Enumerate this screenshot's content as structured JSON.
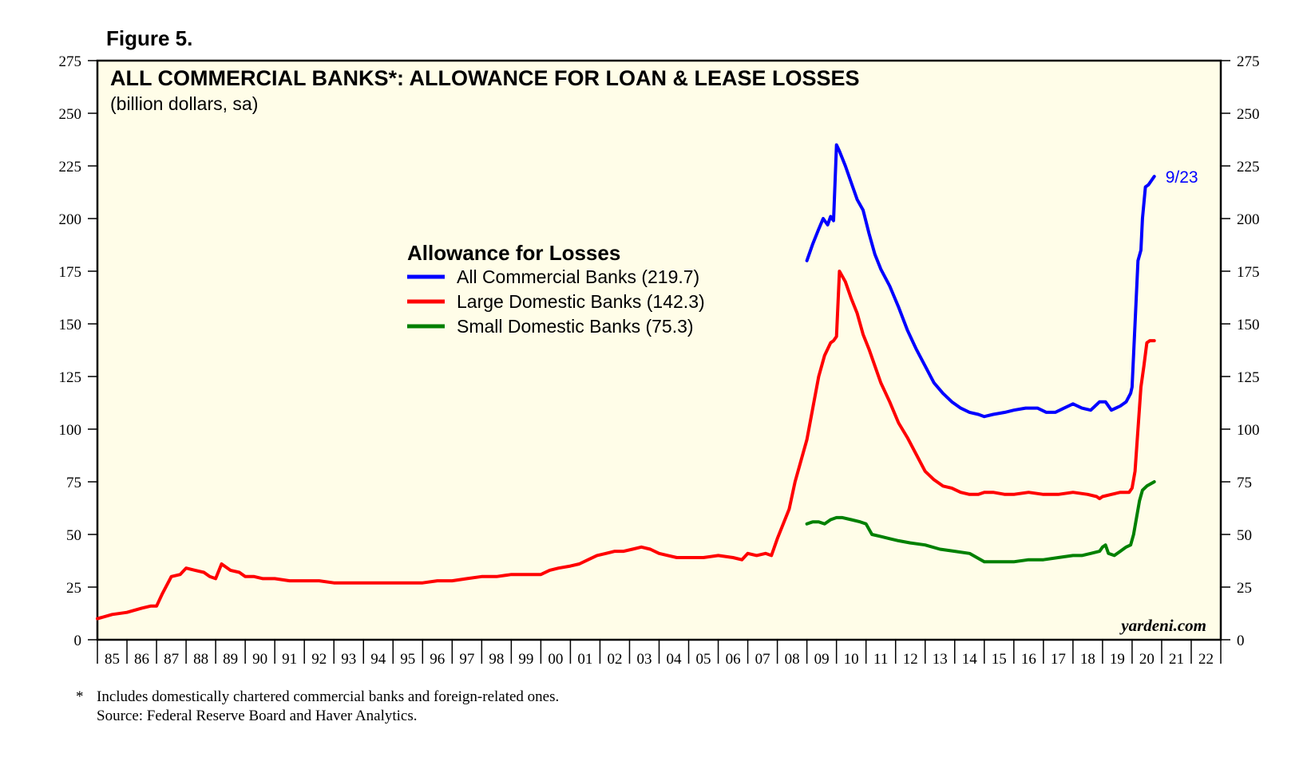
{
  "figure_label": "Figure 5.",
  "watermark": "yardeni.com",
  "footnote": {
    "marker": "*",
    "line1": "Includes domestically chartered commercial banks and foreign-related ones.",
    "line2": "Source: Federal Reserve Board and Haver Analytics."
  },
  "colors": {
    "plot_background": "#fffde8",
    "all_banks": "#0000ff",
    "large_banks": "#ff0000",
    "small_banks": "#008000"
  },
  "chart_data": {
    "type": "line",
    "title": "ALL COMMERCIAL BANKS*: ALLOWANCE FOR LOAN & LEASE LOSSES",
    "subtitle": "(billion dollars, sa)",
    "ylabel": "billion dollars, sa",
    "ylim": [
      0,
      275
    ],
    "xlim": [
      1985,
      2023
    ],
    "grid": false,
    "y_ticks": [
      "0",
      "25",
      "50",
      "75",
      "100",
      "125",
      "150",
      "175",
      "200",
      "225",
      "250",
      "275"
    ],
    "x_tick_labels": [
      "85",
      "86",
      "87",
      "88",
      "89",
      "90",
      "91",
      "92",
      "93",
      "94",
      "95",
      "96",
      "97",
      "98",
      "99",
      "00",
      "01",
      "02",
      "03",
      "04",
      "05",
      "06",
      "07",
      "08",
      "09",
      "10",
      "11",
      "12",
      "13",
      "14",
      "15",
      "16",
      "17",
      "18",
      "19",
      "20",
      "21",
      "22"
    ],
    "legend": {
      "title": "Allowance for Losses",
      "position": "upper-center",
      "entries": [
        {
          "label": "All Commercial Banks (219.7)",
          "series": "all"
        },
        {
          "label": "Large Domestic Banks (142.3)",
          "series": "large"
        },
        {
          "label": "Small Domestic Banks (75.3)",
          "series": "small"
        }
      ]
    },
    "annotations": [
      {
        "text": "9/23",
        "x": 2020.75,
        "y": 220,
        "series": "all"
      }
    ],
    "series": [
      {
        "name": "All Commercial Banks",
        "key": "all",
        "x": [
          2009.0,
          2009.2,
          2009.4,
          2009.55,
          2009.7,
          2009.8,
          2009.85,
          2009.9,
          2010.0,
          2010.1,
          2010.3,
          2010.5,
          2010.7,
          2010.9,
          2011.1,
          2011.3,
          2011.5,
          2011.8,
          2012.1,
          2012.4,
          2012.7,
          2013.0,
          2013.3,
          2013.6,
          2013.9,
          2014.2,
          2014.5,
          2014.8,
          2015.0,
          2015.3,
          2015.7,
          2016.0,
          2016.4,
          2016.8,
          2017.1,
          2017.4,
          2017.7,
          2018.0,
          2018.3,
          2018.6,
          2018.9,
          2019.1,
          2019.3,
          2019.6,
          2019.8,
          2019.95,
          2020.0,
          2020.1,
          2020.2,
          2020.3,
          2020.35,
          2020.45,
          2020.55,
          2020.65,
          2020.75
        ],
        "values": [
          180,
          188,
          195,
          200,
          197,
          201,
          200,
          199,
          235,
          232,
          225,
          217,
          209,
          204,
          193,
          183,
          176,
          168,
          158,
          147,
          138,
          130,
          122,
          117,
          113,
          110,
          108,
          107,
          106,
          107,
          108,
          109,
          110,
          110,
          108,
          108,
          110,
          112,
          110,
          109,
          113,
          113,
          109,
          111,
          113,
          117,
          120,
          150,
          180,
          185,
          200,
          215,
          216,
          218,
          220
        ]
      },
      {
        "name": "Large Domestic Banks",
        "key": "large",
        "x": [
          1985.0,
          1985.5,
          1986.0,
          1986.5,
          1986.8,
          1987.0,
          1987.2,
          1987.5,
          1987.8,
          1988.0,
          1988.3,
          1988.6,
          1988.8,
          1989.0,
          1989.2,
          1989.5,
          1989.8,
          1990.0,
          1990.3,
          1990.6,
          1991.0,
          1991.5,
          1992.0,
          1992.5,
          1993.0,
          1993.5,
          1994.0,
          1994.5,
          1995.0,
          1995.5,
          1996.0,
          1996.5,
          1996.9,
          1997.0,
          1997.5,
          1998.0,
          1998.5,
          1999.0,
          1999.5,
          2000.0,
          2000.3,
          2000.6,
          2001.0,
          2001.3,
          2001.6,
          2001.9,
          2002.2,
          2002.5,
          2002.8,
          2003.1,
          2003.4,
          2003.7,
          2004.0,
          2004.3,
          2004.6,
          2005.0,
          2005.5,
          2006.0,
          2006.5,
          2006.8,
          2007.0,
          2007.3,
          2007.6,
          2007.8,
          2008.0,
          2008.2,
          2008.4,
          2008.6,
          2008.8,
          2009.0,
          2009.2,
          2009.4,
          2009.6,
          2009.8,
          2009.9,
          2010.0,
          2010.1,
          2010.3,
          2010.5,
          2010.7,
          2010.9,
          2011.1,
          2011.3,
          2011.5,
          2011.8,
          2012.1,
          2012.4,
          2012.7,
          2013.0,
          2013.3,
          2013.6,
          2013.9,
          2014.2,
          2014.5,
          2014.8,
          2015.0,
          2015.3,
          2015.7,
          2016.0,
          2016.5,
          2017.0,
          2017.5,
          2018.0,
          2018.5,
          2018.8,
          2018.9,
          2019.0,
          2019.3,
          2019.6,
          2019.9,
          2020.0,
          2020.1,
          2020.2,
          2020.3,
          2020.4,
          2020.5,
          2020.6,
          2020.75
        ],
        "values": [
          10,
          12,
          13,
          15,
          16,
          16,
          22,
          30,
          31,
          34,
          33,
          32,
          30,
          29,
          36,
          33,
          32,
          30,
          30,
          29,
          29,
          28,
          28,
          28,
          27,
          27,
          27,
          27,
          27,
          27,
          27,
          28,
          28,
          28,
          29,
          30,
          30,
          31,
          31,
          31,
          33,
          34,
          35,
          36,
          38,
          40,
          41,
          42,
          42,
          43,
          44,
          43,
          41,
          40,
          39,
          39,
          39,
          40,
          39,
          38,
          41,
          40,
          41,
          40,
          48,
          55,
          62,
          75,
          85,
          95,
          110,
          125,
          135,
          141,
          142,
          144,
          175,
          170,
          162,
          155,
          145,
          138,
          130,
          122,
          113,
          103,
          96,
          88,
          80,
          76,
          73,
          72,
          70,
          69,
          69,
          70,
          70,
          69,
          69,
          70,
          69,
          69,
          70,
          69,
          68,
          67,
          68,
          69,
          70,
          70,
          72,
          80,
          100,
          120,
          130,
          141,
          142,
          142
        ]
      },
      {
        "name": "Small Domestic Banks",
        "key": "small",
        "x": [
          2009.0,
          2009.2,
          2009.4,
          2009.6,
          2009.8,
          2010.0,
          2010.2,
          2010.5,
          2010.8,
          2011.0,
          2011.2,
          2011.5,
          2011.8,
          2012.1,
          2012.5,
          2013.0,
          2013.5,
          2014.0,
          2014.5,
          2015.0,
          2015.5,
          2016.0,
          2016.5,
          2017.0,
          2017.5,
          2018.0,
          2018.3,
          2018.6,
          2018.9,
          2019.0,
          2019.1,
          2019.2,
          2019.4,
          2019.6,
          2019.8,
          2019.95,
          2020.05,
          2020.15,
          2020.25,
          2020.35,
          2020.5,
          2020.75
        ],
        "values": [
          55,
          56,
          56,
          55,
          57,
          58,
          58,
          57,
          56,
          55,
          50,
          49,
          48,
          47,
          46,
          45,
          43,
          42,
          41,
          37,
          37,
          37,
          38,
          38,
          39,
          40,
          40,
          41,
          42,
          44,
          45,
          41,
          40,
          42,
          44,
          45,
          50,
          58,
          66,
          71,
          73,
          75
        ]
      }
    ]
  }
}
